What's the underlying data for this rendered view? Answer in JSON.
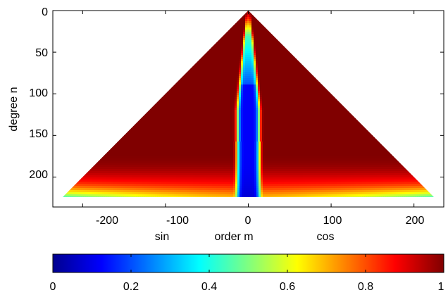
{
  "chart_data": {
    "type": "heatmap",
    "title": "",
    "xlabel": "order m",
    "xlabel_left": "sin",
    "xlabel_right": "cos",
    "ylabel": "degree n",
    "xlim": [
      -236,
      236
    ],
    "ylim": [
      0,
      236
    ],
    "y_inverted": true,
    "x_ticks": [
      -200,
      -100,
      0,
      100,
      200
    ],
    "x_tick_labels": [
      "-200",
      "-100",
      "0",
      "100",
      "200"
    ],
    "y_ticks": [
      0,
      50,
      100,
      150,
      200
    ],
    "y_tick_labels": [
      "0",
      "50",
      "100",
      "150",
      "200"
    ],
    "max_degree": 224,
    "domain": "triangle |m| <= n <= 224",
    "colormap": "jet",
    "clim": [
      0,
      1
    ],
    "colorbar": {
      "orientation": "horizontal",
      "placement": "bottom",
      "ticks": [
        0,
        0.2,
        0.4,
        0.6,
        0.8,
        1
      ],
      "tick_labels": [
        "0",
        "0.2",
        "0.4",
        "0.6",
        "0.8",
        "1"
      ]
    },
    "features": [
      {
        "region": "degree n 0-170, |m| beyond about 12",
        "value": 1.0
      },
      {
        "region": "degree n 170-224, near |m| = n edge",
        "value_range": [
          0.7,
          1.0
        ]
      },
      {
        "region": "degree n near 224, |m| above 150",
        "value_range": [
          0.45,
          0.6
        ]
      },
      {
        "region": "narrow band |m| < 15, degree n 90-224",
        "value_range": [
          0.0,
          0.15
        ]
      }
    ]
  }
}
